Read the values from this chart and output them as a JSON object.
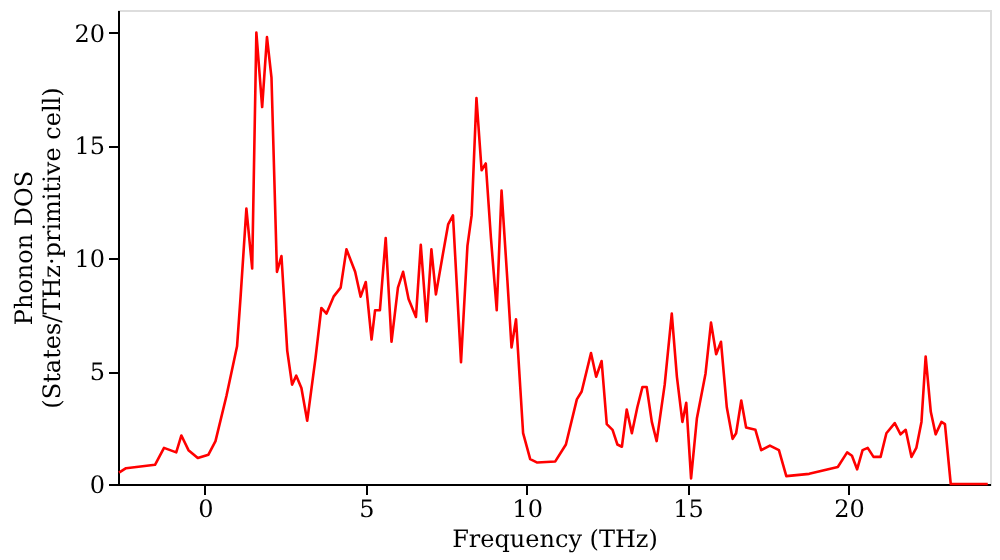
{
  "chart_data": {
    "type": "line",
    "xlabel": "Frequency (THz)",
    "ylabel": "Phonon DOS\n(States/THz·primitive cell)",
    "xlim": [
      -2.7,
      24.4
    ],
    "ylim": [
      0,
      21
    ],
    "xticks": [
      0,
      5,
      10,
      15,
      20
    ],
    "yticks": [
      0,
      5,
      10,
      15,
      20
    ],
    "grid": false,
    "marker": "none",
    "line_style": "solid",
    "series": [
      {
        "color": "#ff0000",
        "x": [
          -2.67,
          -2.45,
          -1.55,
          -1.27,
          -0.89,
          -0.73,
          -0.51,
          -0.22,
          0.11,
          0.33,
          0.67,
          1.0,
          1.11,
          1.29,
          1.47,
          1.6,
          1.78,
          1.93,
          2.07,
          2.24,
          2.38,
          2.56,
          2.71,
          2.84,
          3.0,
          3.18,
          3.44,
          3.62,
          3.78,
          4.0,
          4.22,
          4.4,
          4.67,
          4.84,
          5.0,
          5.18,
          5.29,
          5.44,
          5.62,
          5.8,
          6.0,
          6.16,
          6.33,
          6.56,
          6.71,
          6.89,
          7.04,
          7.18,
          7.38,
          7.56,
          7.71,
          7.96,
          8.16,
          8.29,
          8.44,
          8.6,
          8.73,
          8.89,
          9.07,
          9.22,
          9.4,
          9.53,
          9.67,
          9.89,
          10.11,
          10.33,
          10.89,
          11.22,
          11.56,
          11.71,
          12.0,
          12.16,
          12.33,
          12.49,
          12.67,
          12.82,
          12.96,
          13.11,
          13.27,
          13.44,
          13.6,
          13.73,
          13.89,
          14.04,
          14.29,
          14.51,
          14.67,
          14.84,
          14.96,
          15.11,
          15.29,
          15.56,
          15.73,
          15.89,
          16.04,
          16.22,
          16.4,
          16.51,
          16.67,
          16.82,
          17.11,
          17.29,
          17.56,
          17.84,
          18.07,
          18.78,
          19.67,
          19.96,
          20.11,
          20.27,
          20.44,
          20.6,
          20.78,
          21.0,
          21.18,
          21.44,
          21.62,
          21.78,
          21.96,
          22.11,
          22.27,
          22.4,
          22.56,
          22.71,
          22.89,
          23.0,
          23.18,
          24.33
        ],
        "values": [
          0.5,
          0.7,
          0.85,
          1.6,
          1.4,
          2.15,
          1.5,
          1.15,
          1.3,
          1.9,
          3.9,
          6.1,
          8.3,
          12.2,
          9.55,
          20.0,
          16.7,
          19.8,
          18.0,
          9.4,
          10.1,
          5.9,
          4.4,
          4.8,
          4.25,
          2.8,
          5.6,
          7.8,
          7.55,
          8.3,
          8.7,
          10.4,
          9.4,
          8.3,
          8.95,
          6.4,
          7.7,
          7.7,
          10.9,
          6.3,
          8.7,
          9.4,
          8.2,
          7.4,
          10.6,
          7.2,
          10.4,
          8.4,
          10.05,
          11.5,
          11.9,
          5.4,
          10.55,
          11.9,
          17.1,
          13.9,
          14.2,
          10.9,
          7.7,
          13.0,
          9.05,
          6.05,
          7.3,
          2.25,
          1.1,
          0.95,
          1.0,
          1.75,
          3.75,
          4.1,
          5.8,
          4.75,
          5.45,
          2.65,
          2.4,
          1.75,
          1.65,
          3.3,
          2.25,
          3.4,
          4.3,
          4.3,
          2.75,
          1.9,
          4.4,
          7.55,
          4.75,
          2.75,
          3.6,
          0.25,
          2.9,
          4.9,
          7.15,
          5.75,
          6.3,
          3.4,
          2.0,
          2.25,
          3.7,
          2.5,
          2.4,
          1.5,
          1.7,
          1.5,
          0.35,
          0.45,
          0.75,
          1.4,
          1.25,
          0.65,
          1.5,
          1.6,
          1.2,
          1.2,
          2.25,
          2.7,
          2.2,
          2.4,
          1.2,
          1.6,
          2.75,
          5.65,
          3.2,
          2.2,
          2.75,
          2.65,
          0.0,
          0.0
        ]
      }
    ]
  }
}
